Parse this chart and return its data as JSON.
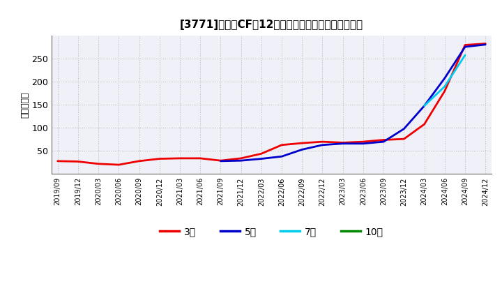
{
  "title": "[3771]　投賄CFの12か月移動合計の標準偏差の推移",
  "ylabel": "（百万円）",
  "background_color": "#ffffff",
  "plot_bg_color": "#f0f0f8",
  "grid_color": "#aaaaaa",
  "ylim": [
    0,
    300
  ],
  "yticks": [
    50,
    100,
    150,
    200,
    250
  ],
  "series": {
    "3年": {
      "color": "#ee0000",
      "linewidth": 2.0
    },
    "5年": {
      "color": "#0000cc",
      "linewidth": 2.0
    },
    "7年": {
      "color": "#00ccee",
      "linewidth": 2.0
    },
    "10年": {
      "color": "#008800",
      "linewidth": 2.0
    }
  },
  "x_labels": [
    "2019/09",
    "2019/12",
    "2020/03",
    "2020/06",
    "2020/09",
    "2020/12",
    "2021/03",
    "2021/06",
    "2021/09",
    "2021/12",
    "2022/03",
    "2022/06",
    "2022/09",
    "2022/12",
    "2023/03",
    "2023/06",
    "2023/09",
    "2023/12",
    "2024/03",
    "2024/06",
    "2024/09",
    "2024/12"
  ],
  "data_3y": [
    28,
    27,
    22,
    20,
    28,
    33,
    34,
    34,
    29,
    34,
    44,
    63,
    67,
    70,
    68,
    70,
    74,
    76,
    108,
    180,
    280,
    283
  ],
  "data_5y": [
    null,
    null,
    null,
    null,
    null,
    null,
    null,
    null,
    28,
    29,
    33,
    38,
    53,
    63,
    66,
    66,
    70,
    98,
    148,
    208,
    276,
    281
  ],
  "data_7y": [
    null,
    null,
    null,
    null,
    null,
    null,
    null,
    null,
    null,
    null,
    null,
    null,
    null,
    null,
    null,
    null,
    null,
    null,
    148,
    190,
    258,
    null
  ],
  "data_10y": [
    null,
    null,
    null,
    null,
    null,
    null,
    null,
    null,
    null,
    null,
    null,
    null,
    null,
    null,
    null,
    null,
    null,
    null,
    null,
    null,
    null,
    null
  ]
}
